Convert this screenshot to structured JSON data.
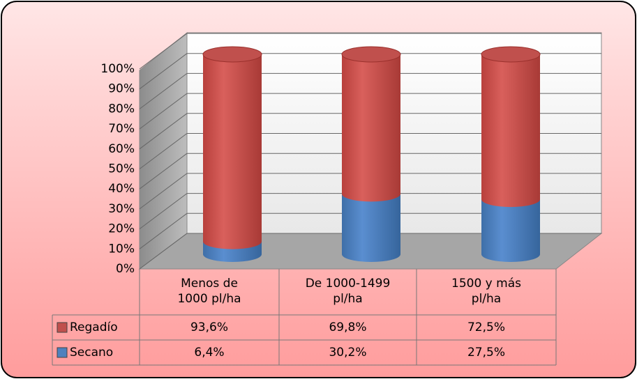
{
  "chart_data": {
    "type": "bar3d_stacked_cylinder",
    "categories": [
      "Menos de 1000 pl/ha",
      "De 1000-1499 pl/ha",
      "1500 y más pl/ha"
    ],
    "series": [
      {
        "name": "Regadío",
        "color": "#c0504d",
        "values": [
          93.6,
          69.8,
          72.5
        ],
        "value_labels": [
          "93,6%",
          "69,8%",
          "72,5%"
        ]
      },
      {
        "name": "Secano",
        "color": "#4f81bd",
        "values": [
          6.4,
          30.2,
          27.5
        ],
        "value_labels": [
          "6,4%",
          "30,2%",
          "27,5%"
        ]
      }
    ],
    "ylim": [
      0,
      100
    ],
    "yticks": [
      {
        "value": 0,
        "label": "0%"
      },
      {
        "value": 10,
        "label": "10%"
      },
      {
        "value": 20,
        "label": "20%"
      },
      {
        "value": 30,
        "label": "30%"
      },
      {
        "value": 40,
        "label": "40%"
      },
      {
        "value": 50,
        "label": "50%"
      },
      {
        "value": 60,
        "label": "60%"
      },
      {
        "value": 70,
        "label": "70%"
      },
      {
        "value": 80,
        "label": "80%"
      },
      {
        "value": 90,
        "label": "90%"
      },
      {
        "value": 100,
        "label": "100%"
      }
    ],
    "grid": true
  }
}
